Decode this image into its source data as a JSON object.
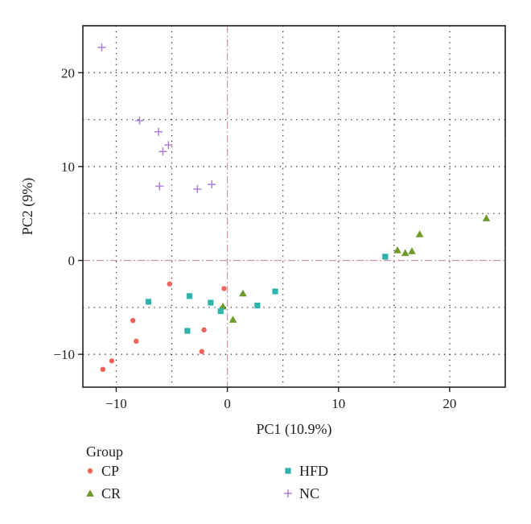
{
  "chart_data": {
    "type": "scatter",
    "xlabel": "PC1 (10.9%)",
    "ylabel": "PC2 (9%)",
    "xlim": [
      -13,
      25
    ],
    "ylim": [
      -13.5,
      25
    ],
    "x_ticks": [
      -10,
      0,
      10,
      20
    ],
    "x_tick_labels": [
      "−10",
      "0",
      "10",
      "20"
    ],
    "y_ticks": [
      -10,
      0,
      10,
      20
    ],
    "y_tick_labels": [
      "−10",
      "0",
      "10",
      "20"
    ],
    "grid": "dotted",
    "reference_lines": {
      "x": 0,
      "y": 0
    },
    "legend": {
      "title": "Group",
      "placement": "bottom",
      "entries": [
        "CP",
        "CR",
        "HFD",
        "NC"
      ]
    },
    "series": [
      {
        "name": "CP",
        "marker": "circle",
        "color": "#f0645e",
        "points": [
          [
            -5.2,
            -2.5
          ],
          [
            -0.3,
            -3.0
          ],
          [
            -8.5,
            -6.4
          ],
          [
            -8.2,
            -8.6
          ],
          [
            -2.1,
            -7.4
          ],
          [
            -2.3,
            -9.7
          ],
          [
            -10.4,
            -10.7
          ],
          [
            -11.2,
            -11.6
          ]
        ]
      },
      {
        "name": "CR",
        "marker": "triangle",
        "color": "#6f9a2c",
        "points": [
          [
            23.3,
            4.5
          ],
          [
            17.3,
            2.8
          ],
          [
            15.3,
            1.1
          ],
          [
            16.0,
            0.8
          ],
          [
            16.6,
            1.0
          ],
          [
            1.4,
            -3.5
          ],
          [
            -0.4,
            -4.9
          ],
          [
            0.5,
            -6.3
          ]
        ]
      },
      {
        "name": "HFD",
        "marker": "square",
        "color": "#2fb3ad",
        "points": [
          [
            14.2,
            0.4
          ],
          [
            -7.1,
            -4.4
          ],
          [
            -3.4,
            -3.8
          ],
          [
            -1.5,
            -4.5
          ],
          [
            -0.6,
            -5.4
          ],
          [
            2.7,
            -4.8
          ],
          [
            4.3,
            -3.3
          ],
          [
            -3.6,
            -7.5
          ]
        ]
      },
      {
        "name": "NC",
        "marker": "plus",
        "color": "#b07fd6",
        "points": [
          [
            -11.3,
            22.7
          ],
          [
            -7.9,
            14.9
          ],
          [
            -6.2,
            13.7
          ],
          [
            -5.3,
            12.3
          ],
          [
            -5.8,
            11.6
          ],
          [
            -6.1,
            7.9
          ],
          [
            -2.7,
            7.6
          ],
          [
            -1.4,
            8.1
          ]
        ]
      }
    ]
  }
}
